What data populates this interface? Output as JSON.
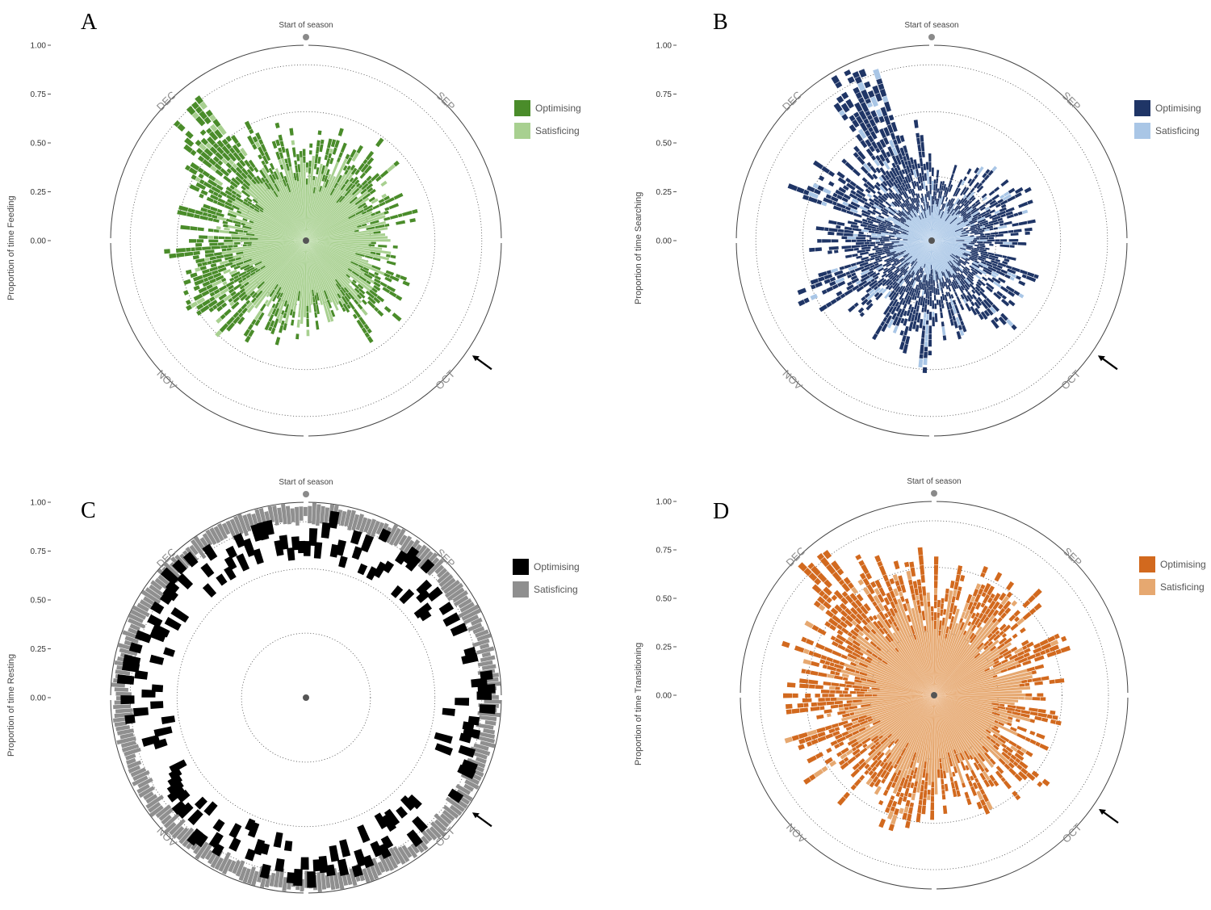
{
  "chart_data": [
    {
      "panel": "A",
      "type": "polar-bar",
      "title": "",
      "ylabel": "Proportion of time Feeding",
      "yticks": [
        "0.00",
        "0.25",
        "0.50",
        "0.75",
        "1.00"
      ],
      "ylim": [
        0,
        1
      ],
      "top_label": "Start of season",
      "months": [
        "SEP",
        "OCT",
        "NOV",
        "DEC"
      ],
      "series": [
        {
          "name": "Optimising",
          "color": "#4a8c2a"
        },
        {
          "name": "Satisficing",
          "color": "#a8d090"
        }
      ],
      "seed": 11,
      "profile": [
        0.48,
        0.5,
        0.55,
        0.52,
        0.46,
        0.4,
        0.46,
        0.52,
        0.48,
        0.44,
        0.45,
        0.5,
        0.56,
        0.62,
        0.58,
        0.55,
        0.6,
        0.82,
        0.55,
        0.5
      ],
      "spread": 0.16,
      "inner_mean": 0.34
    },
    {
      "panel": "B",
      "type": "polar-bar",
      "title": "",
      "ylabel": "Proportion of time Searching",
      "yticks": [
        "0.00",
        "0.25",
        "0.50",
        "0.75",
        "1.00"
      ],
      "ylim": [
        0,
        1
      ],
      "top_label": "Start of season",
      "months": [
        "SEP",
        "OCT",
        "NOV",
        "DEC"
      ],
      "series": [
        {
          "name": "Optimising",
          "color": "#1f3566"
        },
        {
          "name": "Satisficing",
          "color": "#a9c6e6"
        }
      ],
      "seed": 23,
      "profile": [
        0.42,
        0.36,
        0.42,
        0.46,
        0.44,
        0.4,
        0.48,
        0.5,
        0.42,
        0.46,
        0.58,
        0.5,
        0.48,
        0.62,
        0.52,
        0.5,
        0.7,
        0.54,
        0.95,
        0.52
      ],
      "spread": 0.14,
      "inner_mean": 0.17
    },
    {
      "panel": "C",
      "type": "polar-bar",
      "title": "",
      "ylabel": "Proportion of time Resting",
      "yticks": [
        "0.00",
        "0.25",
        "0.50",
        "0.75",
        "1.00"
      ],
      "ylim": [
        0,
        1
      ],
      "top_label": "Start of season",
      "months": [
        "SEP",
        "OCT",
        "NOV",
        "DEC"
      ],
      "series": [
        {
          "name": "Optimising",
          "color": "#000000"
        },
        {
          "name": "Satisficing",
          "color": "#8f8f8f"
        }
      ],
      "seed": 37,
      "ring_opt": [
        0.8,
        0.9
      ],
      "ring_sat": [
        0.88,
        1.0
      ]
    },
    {
      "panel": "D",
      "type": "polar-bar",
      "title": "",
      "ylabel": "Proportion of time Transitioning",
      "yticks": [
        "0.00",
        "0.25",
        "0.50",
        "0.75",
        "1.00"
      ],
      "ylim": [
        0,
        1
      ],
      "top_label": "Start of season",
      "months": [
        "SEP",
        "OCT",
        "NOV",
        "DEC"
      ],
      "series": [
        {
          "name": "Optimising",
          "color": "#d2691e"
        },
        {
          "name": "Satisficing",
          "color": "#e6a870"
        }
      ],
      "seed": 51,
      "profile": [
        0.58,
        0.6,
        0.62,
        0.6,
        0.55,
        0.52,
        0.56,
        0.6,
        0.58,
        0.56,
        0.62,
        0.6,
        0.62,
        0.66,
        0.64,
        0.62,
        0.66,
        0.9,
        0.68,
        0.6
      ],
      "spread": 0.18,
      "inner_mean": 0.4
    }
  ]
}
